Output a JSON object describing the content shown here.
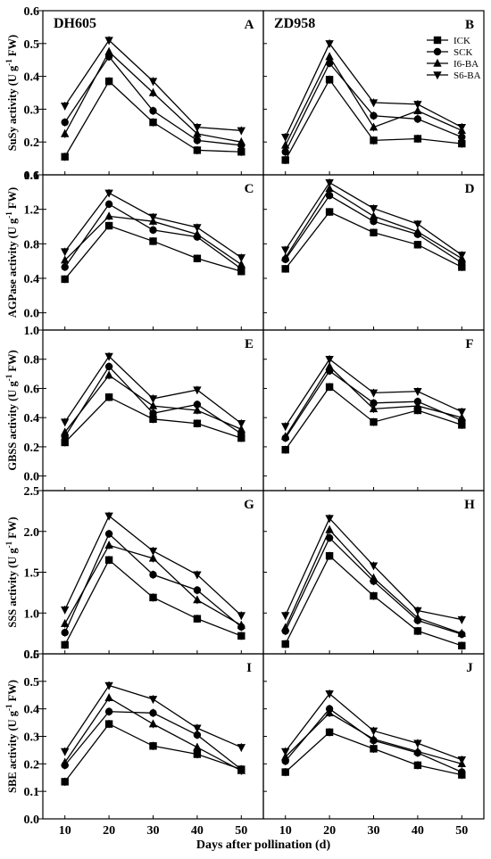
{
  "chart_data": {
    "type": "line",
    "x": [
      10,
      20,
      30,
      40,
      50
    ],
    "xticks": [
      "10",
      "20",
      "30",
      "40",
      "50"
    ],
    "xlim": [
      5,
      55
    ],
    "xlabel": "Days after pollination (d)",
    "column_titles": [
      "DH605",
      "ZD958"
    ],
    "legend": {
      "position": "top-right",
      "entries": [
        {
          "label": "ICK",
          "marker": "square"
        },
        {
          "label": "SCK",
          "marker": "circle"
        },
        {
          "label": "I6-BA",
          "marker": "triangle-up"
        },
        {
          "label": "S6-BA",
          "marker": "triangle-down"
        }
      ]
    },
    "rows": [
      {
        "ylabel_main": "SuSy activity (U g",
        "ylabel_sup": "-1",
        "ylabel_tail": " FW)",
        "ylim": [
          0.1,
          0.6
        ],
        "yticks": [
          "0.1",
          "0.2",
          "0.3",
          "0.4",
          "0.5",
          "0.6"
        ],
        "panels": [
          {
            "letter": "A",
            "series": [
              {
                "name": "ICK",
                "values": [
                  0.155,
                  0.385,
                  0.26,
                  0.175,
                  0.17
                ]
              },
              {
                "name": "SCK",
                "values": [
                  0.26,
                  0.46,
                  0.295,
                  0.205,
                  0.19
                ]
              },
              {
                "name": "I6-BA",
                "values": [
                  0.225,
                  0.475,
                  0.35,
                  0.225,
                  0.2
                ]
              },
              {
                "name": "S6-BA",
                "values": [
                  0.31,
                  0.51,
                  0.385,
                  0.245,
                  0.235
                ]
              }
            ]
          },
          {
            "letter": "B",
            "series": [
              {
                "name": "ICK",
                "values": [
                  0.145,
                  0.39,
                  0.205,
                  0.21,
                  0.195
                ]
              },
              {
                "name": "SCK",
                "values": [
                  0.17,
                  0.44,
                  0.28,
                  0.27,
                  0.215
                ]
              },
              {
                "name": "I6-BA",
                "values": [
                  0.19,
                  0.46,
                  0.245,
                  0.295,
                  0.235
                ]
              },
              {
                "name": "S6-BA",
                "values": [
                  0.215,
                  0.5,
                  0.32,
                  0.315,
                  0.245
                ]
              }
            ]
          }
        ]
      },
      {
        "ylabel_main": "AGPase activity (U g",
        "ylabel_sup": "-1",
        "ylabel_tail": " FW)",
        "ylim": [
          -0.2,
          1.6
        ],
        "yticks": [
          "0.0",
          "0.4",
          "0.8",
          "1.2",
          "1.6"
        ],
        "panels": [
          {
            "letter": "C",
            "series": [
              {
                "name": "ICK",
                "values": [
                  0.39,
                  1.01,
                  0.83,
                  0.63,
                  0.48
                ]
              },
              {
                "name": "SCK",
                "values": [
                  0.53,
                  1.26,
                  0.96,
                  0.88,
                  0.51
                ]
              },
              {
                "name": "I6-BA",
                "values": [
                  0.61,
                  1.12,
                  1.06,
                  0.91,
                  0.56
                ]
              },
              {
                "name": "S6-BA",
                "values": [
                  0.71,
                  1.39,
                  1.11,
                  0.99,
                  0.64
                ]
              }
            ]
          },
          {
            "letter": "D",
            "series": [
              {
                "name": "ICK",
                "values": [
                  0.51,
                  1.17,
                  0.93,
                  0.79,
                  0.53
                ]
              },
              {
                "name": "SCK",
                "values": [
                  0.62,
                  1.36,
                  1.06,
                  0.91,
                  0.58
                ]
              },
              {
                "name": "I6-BA",
                "values": [
                  0.64,
                  1.44,
                  1.12,
                  0.94,
                  0.63
                ]
              },
              {
                "name": "S6-BA",
                "values": [
                  0.73,
                  1.51,
                  1.21,
                  1.03,
                  0.67
                ]
              }
            ]
          }
        ]
      },
      {
        "ylabel_main": "GBSS activity (U g",
        "ylabel_sup": "-1",
        "ylabel_tail": " FW)",
        "ylim": [
          -0.1,
          1.0
        ],
        "yticks": [
          "0.0",
          "0.2",
          "0.4",
          "0.6",
          "0.8",
          "1.0"
        ],
        "panels": [
          {
            "letter": "E",
            "series": [
              {
                "name": "ICK",
                "values": [
                  0.23,
                  0.54,
                  0.39,
                  0.36,
                  0.26
                ]
              },
              {
                "name": "SCK",
                "values": [
                  0.27,
                  0.75,
                  0.43,
                  0.49,
                  0.29
                ]
              },
              {
                "name": "I6-BA",
                "values": [
                  0.3,
                  0.69,
                  0.48,
                  0.45,
                  0.32
                ]
              },
              {
                "name": "S6-BA",
                "values": [
                  0.37,
                  0.82,
                  0.53,
                  0.59,
                  0.36
                ]
              }
            ]
          },
          {
            "letter": "F",
            "series": [
              {
                "name": "ICK",
                "values": [
                  0.18,
                  0.61,
                  0.37,
                  0.45,
                  0.35
                ]
              },
              {
                "name": "SCK",
                "values": [
                  0.26,
                  0.72,
                  0.5,
                  0.51,
                  0.38
                ]
              },
              {
                "name": "I6-BA",
                "values": [
                  0.27,
                  0.75,
                  0.46,
                  0.48,
                  0.4
                ]
              },
              {
                "name": "S6-BA",
                "values": [
                  0.34,
                  0.8,
                  0.57,
                  0.58,
                  0.44
                ]
              }
            ]
          }
        ]
      },
      {
        "ylabel_main": "SSS activity (U g",
        "ylabel_sup": "-1",
        "ylabel_tail": " FW)",
        "ylim": [
          0.5,
          2.5
        ],
        "yticks": [
          "0.5",
          "1.0",
          "1.5",
          "2.0",
          "2.5"
        ],
        "panels": [
          {
            "letter": "G",
            "series": [
              {
                "name": "ICK",
                "values": [
                  0.61,
                  1.65,
                  1.19,
                  0.93,
                  0.72
                ]
              },
              {
                "name": "SCK",
                "values": [
                  0.76,
                  1.97,
                  1.47,
                  1.28,
                  0.83
                ]
              },
              {
                "name": "I6-BA",
                "values": [
                  0.87,
                  1.83,
                  1.67,
                  1.16,
                  0.85
                ]
              },
              {
                "name": "S6-BA",
                "values": [
                  1.04,
                  2.19,
                  1.76,
                  1.47,
                  0.97
                ]
              }
            ]
          },
          {
            "letter": "H",
            "series": [
              {
                "name": "ICK",
                "values": [
                  0.62,
                  1.7,
                  1.21,
                  0.78,
                  0.6
                ]
              },
              {
                "name": "SCK",
                "values": [
                  0.78,
                  1.92,
                  1.39,
                  0.91,
                  0.74
                ]
              },
              {
                "name": "I6-BA",
                "values": [
                  0.82,
                  2.02,
                  1.43,
                  0.94,
                  0.75
                ]
              },
              {
                "name": "S6-BA",
                "values": [
                  0.97,
                  2.16,
                  1.58,
                  1.03,
                  0.92
                ]
              }
            ]
          }
        ]
      },
      {
        "ylabel_main": "SBE activity (U g",
        "ylabel_sup": "-1",
        "ylabel_tail": " FW)",
        "ylim": [
          0.0,
          0.6
        ],
        "yticks": [
          "0.0",
          "0.1",
          "0.2",
          "0.3",
          "0.4",
          "0.5",
          "0.6"
        ],
        "panels": [
          {
            "letter": "I",
            "series": [
              {
                "name": "ICK",
                "values": [
                  0.135,
                  0.345,
                  0.265,
                  0.235,
                  0.18
                ]
              },
              {
                "name": "SCK",
                "values": [
                  0.195,
                  0.39,
                  0.385,
                  0.305,
                  0.18
                ]
              },
              {
                "name": "I6-BA",
                "values": [
                  0.205,
                  0.44,
                  0.345,
                  0.26,
                  0.175
                ]
              },
              {
                "name": "S6-BA",
                "values": [
                  0.245,
                  0.485,
                  0.435,
                  0.33,
                  0.26
                ]
              }
            ]
          },
          {
            "letter": "J",
            "series": [
              {
                "name": "ICK",
                "values": [
                  0.17,
                  0.315,
                  0.255,
                  0.195,
                  0.16
                ]
              },
              {
                "name": "SCK",
                "values": [
                  0.21,
                  0.4,
                  0.285,
                  0.24,
                  0.17
                ]
              },
              {
                "name": "I6-BA",
                "values": [
                  0.225,
                  0.385,
                  0.29,
                  0.245,
                  0.2
                ]
              },
              {
                "name": "S6-BA",
                "values": [
                  0.245,
                  0.455,
                  0.32,
                  0.275,
                  0.215
                ]
              }
            ]
          }
        ]
      }
    ]
  }
}
